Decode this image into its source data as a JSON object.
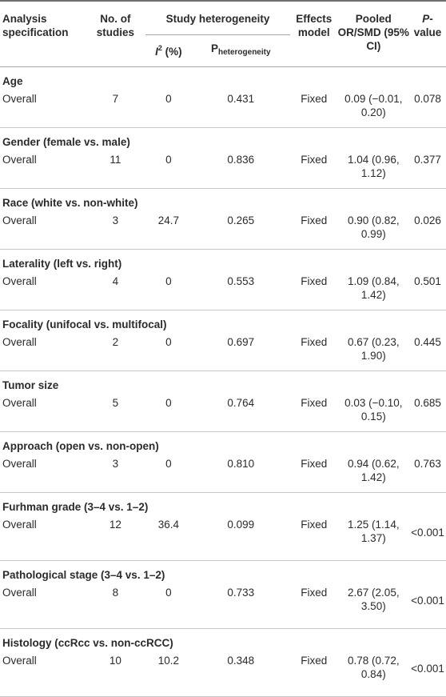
{
  "header": {
    "col_spec": "Analysis specification",
    "col_n": "No. of studies",
    "col_group": "Study heterogeneity",
    "col_i2_letter": "I",
    "col_i2_sup": "2",
    "col_i2_unit": " (%)",
    "col_ph_main": "P",
    "col_ph_sub": "heterogeneity",
    "col_model": "Effects model",
    "col_or": "Pooled OR/SMD (95% CI)",
    "col_p_italic": "P",
    "col_p_rest": "-value"
  },
  "sections": [
    {
      "title": "Age",
      "label": "Overall",
      "n": "7",
      "i2": "0",
      "ph": "0.431",
      "model": "Fixed",
      "or": "0.09 (−0.01, 0.20)",
      "p": "0.078"
    },
    {
      "title": "Gender (female vs. male)",
      "label": "Overall",
      "n": "11",
      "i2": "0",
      "ph": "0.836",
      "model": "Fixed",
      "or": "1.04 (0.96, 1.12)",
      "p": "0.377"
    },
    {
      "title": "Race (white vs. non-white)",
      "label": "Overall",
      "n": "3",
      "i2": "24.7",
      "ph": "0.265",
      "model": "Fixed",
      "or": "0.90 (0.82, 0.99)",
      "p": "0.026"
    },
    {
      "title": "Laterality (left vs. right)",
      "label": "Overall",
      "n": "4",
      "i2": "0",
      "ph": "0.553",
      "model": "Fixed",
      "or": "1.09 (0.84, 1.42)",
      "p": "0.501"
    },
    {
      "title": "Focality (unifocal vs. multifocal)",
      "label": "Overall",
      "n": "2",
      "i2": "0",
      "ph": "0.697",
      "model": "Fixed",
      "or": "0.67 (0.23, 1.90)",
      "p": "0.445"
    },
    {
      "title": "Tumor size",
      "label": "Overall",
      "n": "5",
      "i2": "0",
      "ph": "0.764",
      "model": "Fixed",
      "or": "0.03 (−0.10, 0.15)",
      "p": "0.685"
    },
    {
      "title": "Approach (open vs. non-open)",
      "label": "Overall",
      "n": "3",
      "i2": "0",
      "ph": "0.810",
      "model": "Fixed",
      "or": "0.94 (0.62, 1.42)",
      "p": "0.763"
    },
    {
      "title": "Furhman grade (3–4 vs. 1–2)",
      "label": "Overall",
      "n": "12",
      "i2": "36.4",
      "ph": "0.099",
      "model": "Fixed",
      "or": "1.25 (1.14, 1.37)",
      "p": "<0.001"
    },
    {
      "title": "Pathological stage (3–4 vs. 1–2)",
      "label": "Overall",
      "n": "8",
      "i2": "0",
      "ph": "0.733",
      "model": "Fixed",
      "or": "2.67 (2.05, 3.50)",
      "p": "<0.001"
    },
    {
      "title": "Histology (ccRcc vs. non-ccRCC)",
      "label": "Overall",
      "n": "10",
      "i2": "10.2",
      "ph": "0.348",
      "model": "Fixed",
      "or": "0.78 (0.72, 0.84)",
      "p": "<0.001"
    }
  ]
}
